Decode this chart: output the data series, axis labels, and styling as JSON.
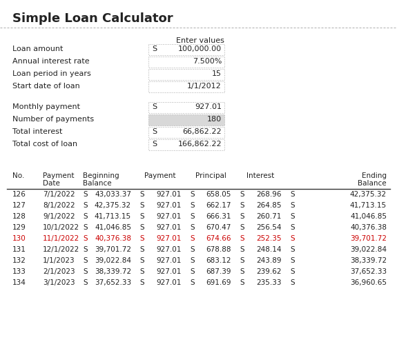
{
  "title": "Simple Loan Calculator",
  "bg_color": "#ffffff",
  "title_text": "#222222",
  "label_text": "#222222",
  "value_text": "#222222",
  "header_text": "#222222",
  "border_color": "#aaaaaa",
  "shaded_color": "#d8d8d8",
  "table_header_line": "#333333",
  "highlight_color": "#cc0000",
  "normal_color": "#222222",
  "input_header": "Enter values",
  "input_rows": [
    {
      "label": "Loan amount",
      "dollar": "S",
      "value": "100,000.00"
    },
    {
      "label": "Annual interest rate",
      "dollar": "",
      "value": "7.500%"
    },
    {
      "label": "Loan period in years",
      "dollar": "",
      "value": "15"
    },
    {
      "label": "Start date of loan",
      "dollar": "",
      "value": "1/1/2012"
    }
  ],
  "output_rows": [
    {
      "label": "Monthly payment",
      "dollar": "S",
      "value": "927.01",
      "shaded": false
    },
    {
      "label": "Number of payments",
      "dollar": "",
      "value": "180",
      "shaded": true
    },
    {
      "label": "Total interest",
      "dollar": "S",
      "value": "66,862.22",
      "shaded": false
    },
    {
      "label": "Total cost of loan",
      "dollar": "S",
      "value": "166,862.22",
      "shaded": false
    }
  ],
  "table_data": [
    [
      126,
      "7/1/2022",
      "43,033.37",
      "927.01",
      "658.05",
      "268.96",
      "42,375.32"
    ],
    [
      127,
      "8/1/2022",
      "42,375.32",
      "927.01",
      "662.17",
      "264.85",
      "41,713.15"
    ],
    [
      128,
      "9/1/2022",
      "41,713.15",
      "927.01",
      "666.31",
      "260.71",
      "41,046.85"
    ],
    [
      129,
      "10/1/2022",
      "41,046.85",
      "927.01",
      "670.47",
      "256.54",
      "40,376.38"
    ],
    [
      130,
      "11/1/2022",
      "40,376.38",
      "927.01",
      "674.66",
      "252.35",
      "39,701.72"
    ],
    [
      131,
      "12/1/2022",
      "39,701.72",
      "927.01",
      "678.88",
      "248.14",
      "39,022.84"
    ],
    [
      132,
      "1/1/2023",
      "39,022.84",
      "927.01",
      "683.12",
      "243.89",
      "38,339.72"
    ],
    [
      133,
      "2/1/2023",
      "38,339.72",
      "927.01",
      "687.39",
      "239.62",
      "37,652.33"
    ],
    [
      134,
      "3/1/2023",
      "37,652.33",
      "927.01",
      "691.69",
      "235.33",
      "36,960.65"
    ]
  ],
  "highlight_no": 130
}
